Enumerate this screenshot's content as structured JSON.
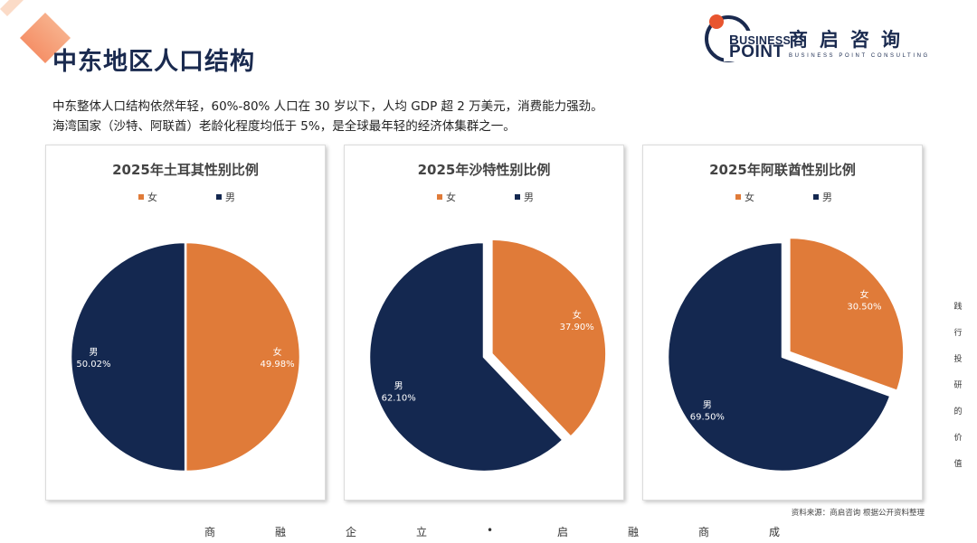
{
  "page": {
    "title": "中东地区人口结构",
    "intro_lines": [
      "中东整体人口结构依然年轻，60%-80% 人口在 30 岁以下，人均 GDP 超 2 万美元，消费能力强劲。",
      "海湾国家（沙特、阿联酋）老龄化程度均低于 5%，是全球最年轻的经济体集群之一。"
    ],
    "source": "资料来源：商启咨询 根据公开资料整理",
    "side_text": [
      "践",
      "行",
      "投",
      "研",
      "的",
      "价",
      "值"
    ],
    "footer_chars": [
      "商",
      "融",
      "企",
      "立",
      "•",
      "启",
      "融",
      "商",
      "成"
    ]
  },
  "logo": {
    "en_line1": "USINESS",
    "en_line2": "OINT",
    "cn": "商启咨询",
    "sub": "BUSINESS POINT CONSULTING"
  },
  "colors": {
    "female": "#E07B39",
    "male": "#142850",
    "title": "#1a2a4f",
    "corner": "#E8552F"
  },
  "chart_data": [
    {
      "type": "pie",
      "title": "2025年土耳其性别比例",
      "legend": [
        "女",
        "男"
      ],
      "slices": [
        {
          "label": "女",
          "value": 49.98,
          "display": "49.98%"
        },
        {
          "label": "男",
          "value": 50.02,
          "display": "50.02%"
        }
      ],
      "exploded": ""
    },
    {
      "type": "pie",
      "title": "2025年沙特性别比例",
      "legend": [
        "女",
        "男"
      ],
      "slices": [
        {
          "label": "女",
          "value": 37.9,
          "display": "37.90%"
        },
        {
          "label": "男",
          "value": 62.1,
          "display": "62.10%"
        }
      ],
      "exploded": "女"
    },
    {
      "type": "pie",
      "title": "2025年阿联酋性别比例",
      "legend": [
        "女",
        "男"
      ],
      "slices": [
        {
          "label": "女",
          "value": 30.5,
          "display": "30.50%"
        },
        {
          "label": "男",
          "value": 69.5,
          "display": "69.50%"
        }
      ],
      "exploded": "女"
    }
  ]
}
